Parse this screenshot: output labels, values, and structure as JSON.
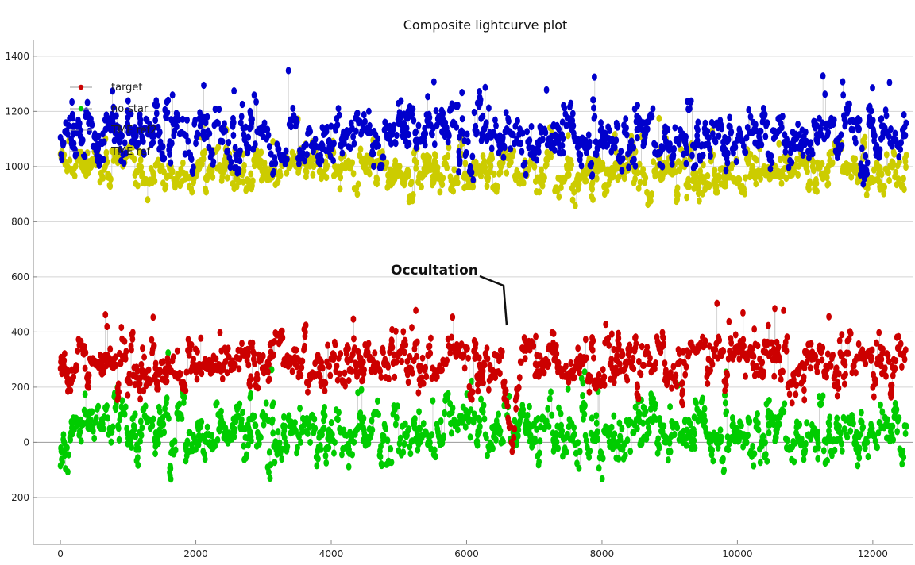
{
  "chart_data": {
    "type": "scatter",
    "title": "Composite lightcurve plot",
    "xlabel": "",
    "ylabel": "",
    "xlim": [
      -400,
      12600
    ],
    "ylim": [
      -370,
      1460
    ],
    "x_ticks": [
      0,
      2000,
      4000,
      6000,
      8000,
      10000,
      12000
    ],
    "y_ticks": [
      -200,
      0,
      200,
      400,
      600,
      800,
      1000,
      1200,
      1400
    ],
    "x_tick_labels": [
      "0",
      "2000",
      "4000",
      "6000",
      "8000",
      "10000",
      "12000"
    ],
    "y_tick_labels": [
      "-200",
      "0",
      "200",
      "400",
      "600",
      "800",
      "1000",
      "1200",
      "1400"
    ],
    "grid": true,
    "legend_position": "top-left",
    "x_range": [
      0,
      12500
    ],
    "series": [
      {
        "name": "target",
        "color": "#cc0000",
        "baseline": 290,
        "spread": 70,
        "occultation": {
          "x_start": 6550,
          "x_end": 6800,
          "min_value": -100
        }
      },
      {
        "name": "no-star",
        "color": "#00cc00",
        "baseline": 40,
        "spread": 80
      },
      {
        "name": "TME ref2",
        "color": "#0000cc",
        "baseline": 1110,
        "spread": 80
      },
      {
        "name": "TME ref",
        "color": "#cccc00",
        "baseline": 990,
        "spread": 60
      }
    ],
    "annotations": [
      {
        "text": "Occultation",
        "x": 6550,
        "y": 560,
        "arrow_to": {
          "x": 6600,
          "y": 430
        }
      }
    ]
  }
}
